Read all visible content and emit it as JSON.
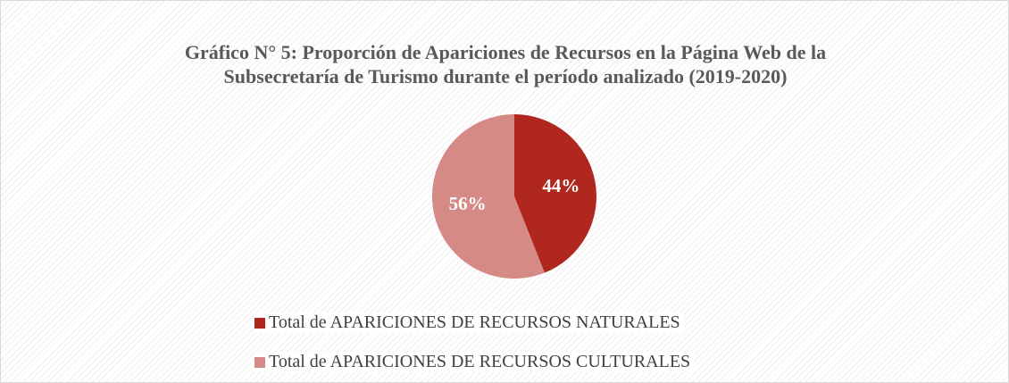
{
  "chart_data": {
    "type": "pie",
    "title": "Gráfico N° 5: Proporción de Apariciones de Recursos en la Página Web de la Subsecretaría de Turismo durante el período analizado (2019-2020)",
    "categories": [
      "Total de APARICIONES DE RECURSOS NATURALES",
      "Total de APARICIONES DE RECURSOS CULTURALES"
    ],
    "values": [
      44,
      56
    ],
    "value_labels": [
      "44%",
      "56%"
    ],
    "colors": [
      "#b0271e",
      "#d58a86"
    ],
    "legend": "bottom"
  }
}
